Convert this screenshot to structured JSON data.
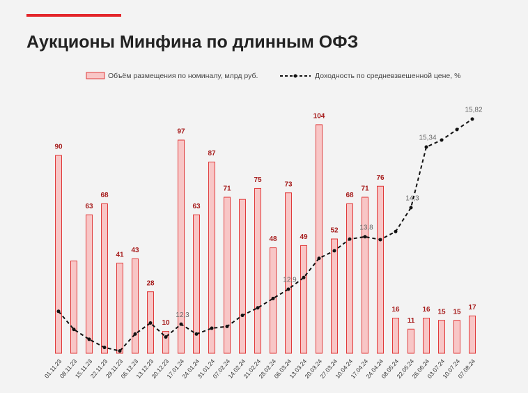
{
  "chart_data": {
    "type": "bar",
    "title": "Аукционы Минфина по длинным ОФЗ",
    "categories": [
      "01.11.23",
      "08.11.23",
      "15.11.23",
      "22.11.23",
      "29.11.23",
      "06.12.23",
      "13.12.23",
      "20.12.23",
      "17.01.24",
      "24.01.24",
      "31.01.24",
      "07.02.24",
      "14.02.24",
      "21.02.24",
      "28.02.24",
      "06.03.24",
      "13.03.24",
      "20.03.24",
      "27.03.24",
      "10.04.24",
      "17.04.24",
      "24.04.24",
      "08.05.24",
      "22.05.24",
      "26.06.24",
      "03.07.24",
      "10.07.24",
      "07.08.24"
    ],
    "series": [
      {
        "name": "Объём размещения по номиналу, млрд руб.",
        "type": "bar",
        "color": "#f8c6c6",
        "edge": "#e03a3a",
        "values": [
          90,
          42,
          63,
          68,
          41,
          43,
          28,
          10,
          97,
          63,
          87,
          71,
          70,
          75,
          48,
          73,
          49,
          104,
          52,
          68,
          71,
          76,
          16,
          11,
          16,
          15,
          15,
          17
        ],
        "value_labels": [
          "90",
          null,
          "63",
          "68",
          "41",
          "43",
          "28",
          "10",
          "97",
          "63",
          "87",
          "71",
          null,
          "75",
          "48",
          "73",
          "49",
          "104",
          "52",
          "68",
          "71",
          "76",
          "16",
          "11",
          "16",
          "15",
          "15",
          "17"
        ]
      },
      {
        "name": "Доходность по средневзвешенной цене, %",
        "type": "line",
        "axis": "y2",
        "color": "#111111",
        "values": [
          12.52,
          12.21,
          12.04,
          11.9,
          11.84,
          12.13,
          12.32,
          12.08,
          12.3,
          12.13,
          12.23,
          12.26,
          12.45,
          12.58,
          12.74,
          12.9,
          13.1,
          13.43,
          13.56,
          13.76,
          13.8,
          13.75,
          13.89,
          14.3,
          15.34,
          15.46,
          15.64,
          15.82
        ],
        "value_labels": [
          null,
          null,
          null,
          null,
          null,
          null,
          null,
          null,
          "12,3",
          null,
          null,
          null,
          null,
          null,
          null,
          "12,9",
          null,
          null,
          null,
          null,
          "13,8",
          null,
          null,
          "14,3",
          "15,34",
          null,
          null,
          "15,82"
        ]
      }
    ],
    "ylim": [
      0,
      110
    ],
    "y2lim": [
      11.8,
      15.95
    ]
  }
}
